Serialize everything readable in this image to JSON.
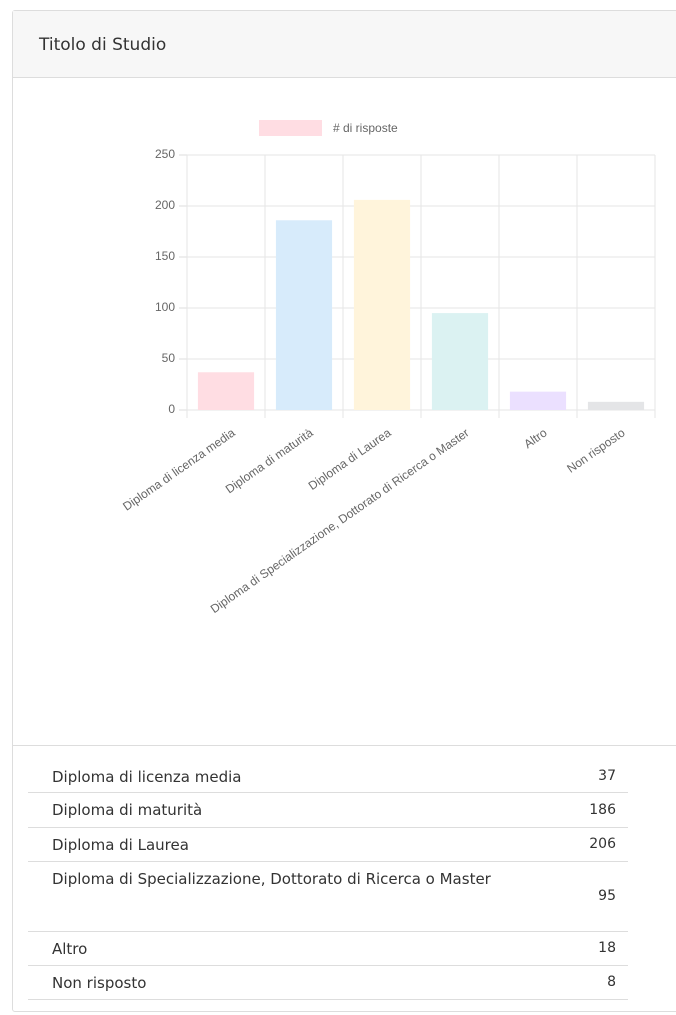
{
  "panel": {
    "title": "Titolo di Studio"
  },
  "chart_data": {
    "type": "bar",
    "categories": [
      "Diploma di licenza media",
      "Diploma di maturità",
      "Diploma di Laurea",
      "Diploma di Specializzazione, Dottorato di Ricerca o Master",
      "Altro",
      "Non risposto"
    ],
    "series": [
      {
        "name": "# di risposte",
        "color": "#ffdde3",
        "colors": [
          "#ffdde3",
          "#d7ebfb",
          "#fff4db",
          "#dbf2f2",
          "#ebe0ff",
          "#e4e5e7"
        ],
        "values": [
          37,
          186,
          206,
          95,
          18,
          8
        ]
      }
    ],
    "ylim": [
      0,
      250
    ],
    "yticks": [
      0,
      50,
      100,
      150,
      200,
      250
    ],
    "grid": true,
    "legend": "top"
  },
  "table": {
    "rows": [
      [
        "Diploma di licenza media",
        "37"
      ],
      [
        "Diploma di maturità",
        "186"
      ],
      [
        "Diploma di Laurea",
        "206"
      ],
      [
        "Diploma di Specializzazione, Dottorato di Ricerca o Master",
        "95"
      ],
      [
        "Altro",
        "18"
      ],
      [
        "Non risposto",
        "8"
      ]
    ]
  }
}
